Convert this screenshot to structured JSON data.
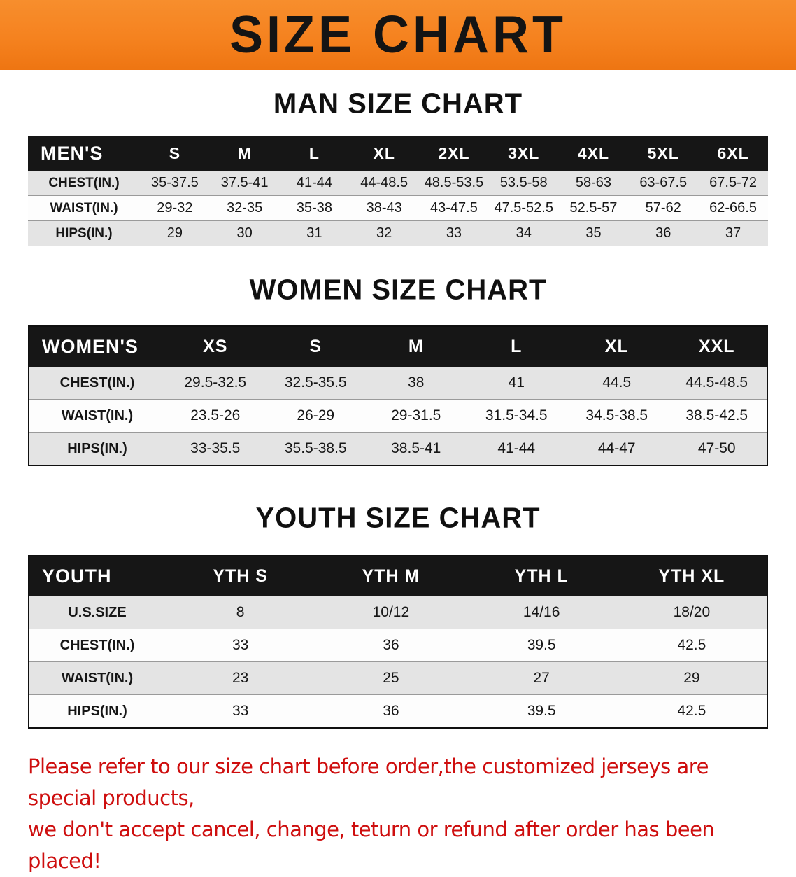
{
  "banner": {
    "title": "SIZE CHART"
  },
  "sections": [
    {
      "id": "men",
      "heading": "MAN SIZE CHART",
      "table": {
        "header": [
          "MEN'S",
          "S",
          "M",
          "L",
          "XL",
          "2XL",
          "3XL",
          "4XL",
          "5XL",
          "6XL"
        ],
        "rows": [
          [
            "CHEST(IN.)",
            "35-37.5",
            "37.5-41",
            "41-44",
            "44-48.5",
            "48.5-53.5",
            "53.5-58",
            "58-63",
            "63-67.5",
            "67.5-72"
          ],
          [
            "WAIST(IN.)",
            "29-32",
            "32-35",
            "35-38",
            "38-43",
            "43-47.5",
            "47.5-52.5",
            "52.5-57",
            "57-62",
            "62-66.5"
          ],
          [
            "HIPS(IN.)",
            "29",
            "30",
            "31",
            "32",
            "33",
            "34",
            "35",
            "36",
            "37"
          ]
        ]
      }
    },
    {
      "id": "women",
      "heading": "WOMEN SIZE CHART",
      "table": {
        "header": [
          "WOMEN'S",
          "XS",
          "S",
          "M",
          "L",
          "XL",
          "XXL"
        ],
        "rows": [
          [
            "CHEST(IN.)",
            "29.5-32.5",
            "32.5-35.5",
            "38",
            "41",
            "44.5",
            "44.5-48.5"
          ],
          [
            "WAIST(IN.)",
            "23.5-26",
            "26-29",
            "29-31.5",
            "31.5-34.5",
            "34.5-38.5",
            "38.5-42.5"
          ],
          [
            "HIPS(IN.)",
            "33-35.5",
            "35.5-38.5",
            "38.5-41",
            "41-44",
            "44-47",
            "47-50"
          ]
        ]
      }
    },
    {
      "id": "youth",
      "heading": "YOUTH SIZE CHART",
      "table": {
        "header": [
          "YOUTH",
          "YTH S",
          "YTH M",
          "YTH L",
          "YTH XL"
        ],
        "rows": [
          [
            "U.S.SIZE",
            "8",
            "10/12",
            "14/16",
            "18/20"
          ],
          [
            "CHEST(IN.)",
            "33",
            "36",
            "39.5",
            "42.5"
          ],
          [
            "WAIST(IN.)",
            "23",
            "25",
            "27",
            "29"
          ],
          [
            "HIPS(IN.)",
            "33",
            "36",
            "39.5",
            "42.5"
          ]
        ]
      }
    }
  ],
  "footer": {
    "line1": "Please refer to our size chart before order,the customized jerseys are special products,",
    "line2": "we don't accept cancel, change, teturn or refund after order has been placed!"
  },
  "colors": {
    "banner_bg": "#f5821f",
    "table_header_bg": "#161616",
    "row_alt_bg": "#e4e4e4",
    "footer_text": "#ce0e0e"
  }
}
